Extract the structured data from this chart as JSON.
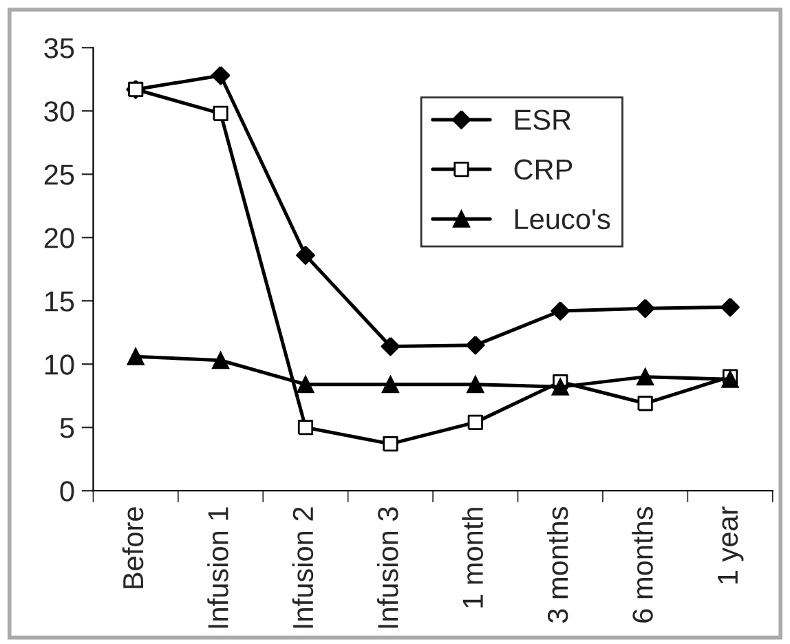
{
  "chart_data": {
    "type": "line",
    "categories": [
      "Before",
      "Infusion 1",
      "Infusion 2",
      "Infusion 3",
      "1 month",
      "3 months",
      "6 months",
      "1 year"
    ],
    "series": [
      {
        "name": "ESR",
        "color": "#000000",
        "marker": "diamond",
        "values": [
          31.7,
          32.8,
          18.6,
          11.4,
          11.5,
          14.2,
          14.4,
          14.5
        ]
      },
      {
        "name": "CRP",
        "color": "#000000",
        "marker": "square",
        "values": [
          31.7,
          29.8,
          5.0,
          3.7,
          5.4,
          8.6,
          6.9,
          9.0
        ]
      },
      {
        "name": "Leuco's",
        "color": "#000000",
        "marker": "triangle",
        "values": [
          10.6,
          10.3,
          8.4,
          8.4,
          8.4,
          8.2,
          9.0,
          8.8
        ]
      }
    ],
    "ylim": [
      0,
      35
    ],
    "yticks": [
      0,
      5,
      10,
      15,
      20,
      25,
      30,
      35
    ],
    "grid": false,
    "legend": "top right",
    "line_style": "solid"
  }
}
